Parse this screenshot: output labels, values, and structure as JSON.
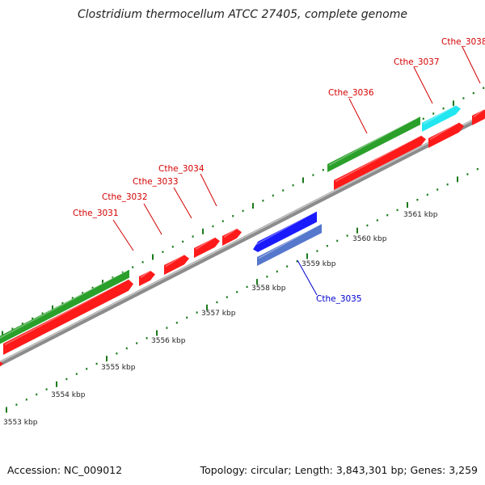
{
  "title": "Clostridium thermocellum ATCC 27405, complete genome",
  "footer": {
    "accession": "Accession: NC_009012",
    "summary": "Topology: circular; Length: 3,843,301 bp; Genes: 3,259"
  },
  "colors": {
    "forward_gene": "#ff1a1a",
    "cds_track": "#2aa02a",
    "reverse_gene": "#1a1aff",
    "reverse_cds": "#5577cc",
    "highlight_gene": "#22e6f0",
    "backbone": "#8c8c8c",
    "tick": "#1a7a1a",
    "label_red": "#d40000",
    "label_blue": "#0000cc"
  },
  "scale": {
    "unit": "kbp",
    "ticks": [
      "3553 kbp",
      "3554 kbp",
      "3555 kbp",
      "3556 kbp",
      "3557 kbp",
      "3558 kbp",
      "3559 kbp",
      "3560 kbp",
      "3561 kbp"
    ]
  },
  "genes": [
    {
      "label": "Cthe_3031",
      "strand": "+"
    },
    {
      "label": "Cthe_3032",
      "strand": "+"
    },
    {
      "label": "Cthe_3033",
      "strand": "+"
    },
    {
      "label": "Cthe_3034",
      "strand": "+"
    },
    {
      "label": "Cthe_3035",
      "strand": "-"
    },
    {
      "label": "Cthe_3036",
      "strand": "+"
    },
    {
      "label": "Cthe_3037",
      "strand": "+"
    },
    {
      "label": "Cthe_3038",
      "strand": "+"
    }
  ]
}
